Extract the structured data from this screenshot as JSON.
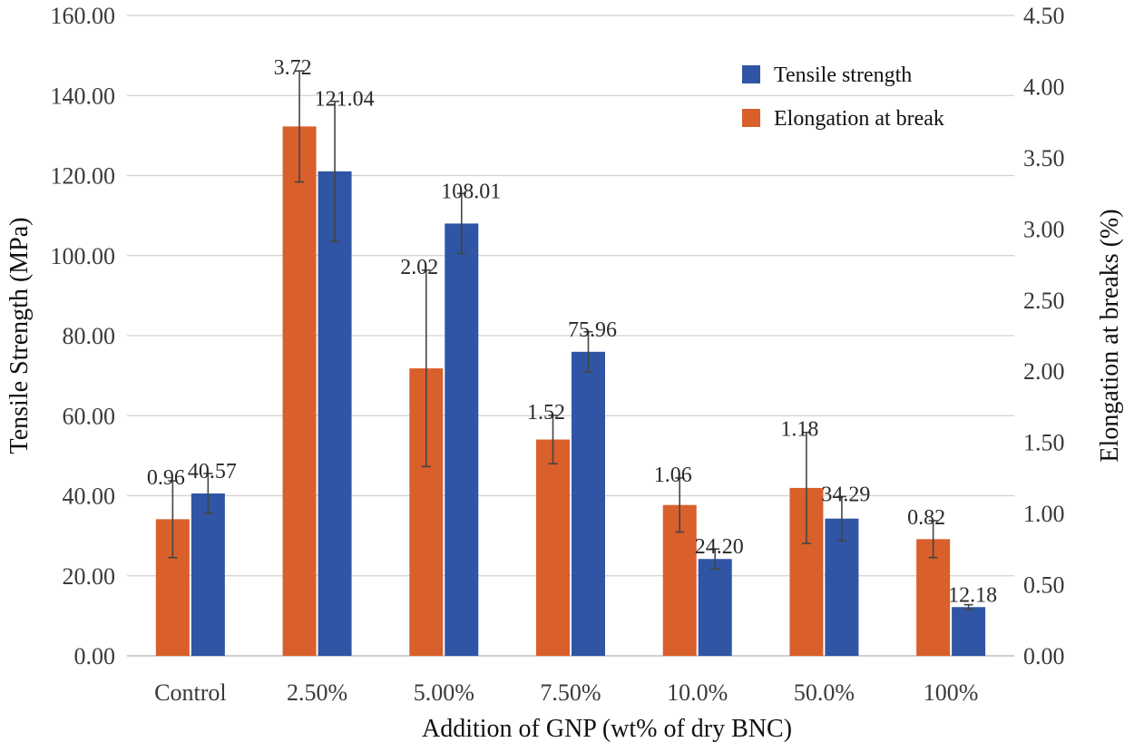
{
  "chart_data": {
    "type": "bar",
    "title": "",
    "xlabel": "Addition of GNP (wt% of dry BNC)",
    "ylabel": "Tensile  Strength (MPa)",
    "y2label": "Elongation at breaks (%)",
    "ylim": [
      0,
      160
    ],
    "y2lim": [
      0,
      4.5
    ],
    "yticks": [
      "0.00",
      "20.00",
      "40.00",
      "60.00",
      "80.00",
      "100.00",
      "120.00",
      "140.00",
      "160.00"
    ],
    "y2ticks": [
      "0.00",
      "0.50",
      "1.00",
      "1.50",
      "2.00",
      "2.50",
      "3.00",
      "3.50",
      "4.00",
      "4.50"
    ],
    "categories": [
      "Control",
      "2.50%",
      "5.00%",
      "7.50%",
      "10.0%",
      "50.0%",
      "100%"
    ],
    "legend_position": "top-right",
    "grid": true,
    "series": [
      {
        "name": "Elongation at break",
        "axis": "right",
        "color": "#d95f2b",
        "values": [
          0.96,
          3.72,
          2.02,
          1.52,
          1.06,
          1.18,
          0.82
        ],
        "labels": [
          "0.96",
          "3.72",
          "2.02",
          "1.52",
          "1.06",
          "1.18",
          "0.82"
        ],
        "errors": [
          0.27,
          0.39,
          0.69,
          0.17,
          0.19,
          0.39,
          0.13
        ]
      },
      {
        "name": "Tensile strength",
        "axis": "left",
        "color": "#2f55a4",
        "values": [
          40.57,
          121.04,
          108.01,
          75.96,
          24.2,
          34.29,
          12.18
        ],
        "labels": [
          "40.57",
          "121.04",
          "108.01",
          "75.96",
          "24.20",
          "34.29",
          "12.18"
        ],
        "errors": [
          5,
          17.5,
          7.5,
          5,
          2.5,
          5.5,
          0.6
        ]
      }
    ],
    "legend_order": [
      "Tensile strength",
      "Elongation at break"
    ]
  }
}
